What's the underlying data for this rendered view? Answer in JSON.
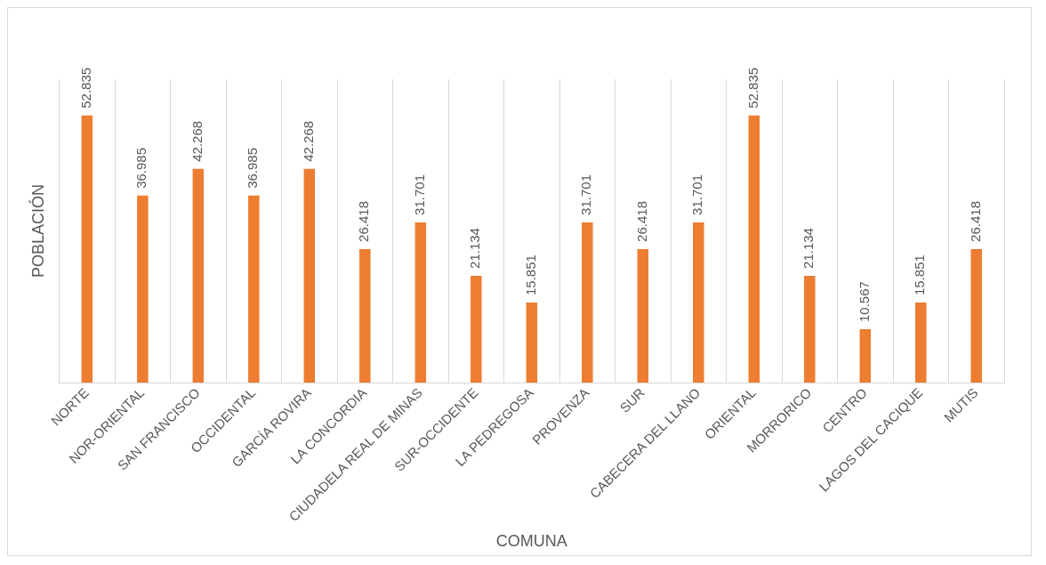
{
  "chart_data": {
    "type": "bar",
    "xlabel": "COMUNA",
    "ylabel": "POBLACIÓN",
    "categories": [
      "NORTE",
      "NOR-ORIENTAL",
      "SAN FRANCISCO",
      "OCCIDENTAL",
      "GARCÍA ROVIRA",
      "LA CONCORDIA",
      "CIUDADELA REAL DE MINAS",
      "SUR-OCCIDENTE",
      "LA PEDREGOSA",
      "PROVENZA",
      "SUR",
      "CABECERA DEL LLANO",
      "ORIENTAL",
      "MORRORICO",
      "CENTRO",
      "LAGOS DEL CACIQUE",
      "MUTIS"
    ],
    "values": [
      52835,
      36985,
      42268,
      36985,
      42268,
      26418,
      31701,
      21134,
      15851,
      31701,
      26418,
      31701,
      52835,
      21134,
      10567,
      15851,
      26418
    ],
    "value_labels": [
      "52.835",
      "36.985",
      "42.268",
      "36.985",
      "42.268",
      "26.418",
      "31.701",
      "21.134",
      "15.851",
      "31.701",
      "26.418",
      "31.701",
      "52.835",
      "21.134",
      "10.567",
      "15.851",
      "26.418"
    ],
    "color": "#ed7d31",
    "grid": "x",
    "tick_labels": "x"
  }
}
